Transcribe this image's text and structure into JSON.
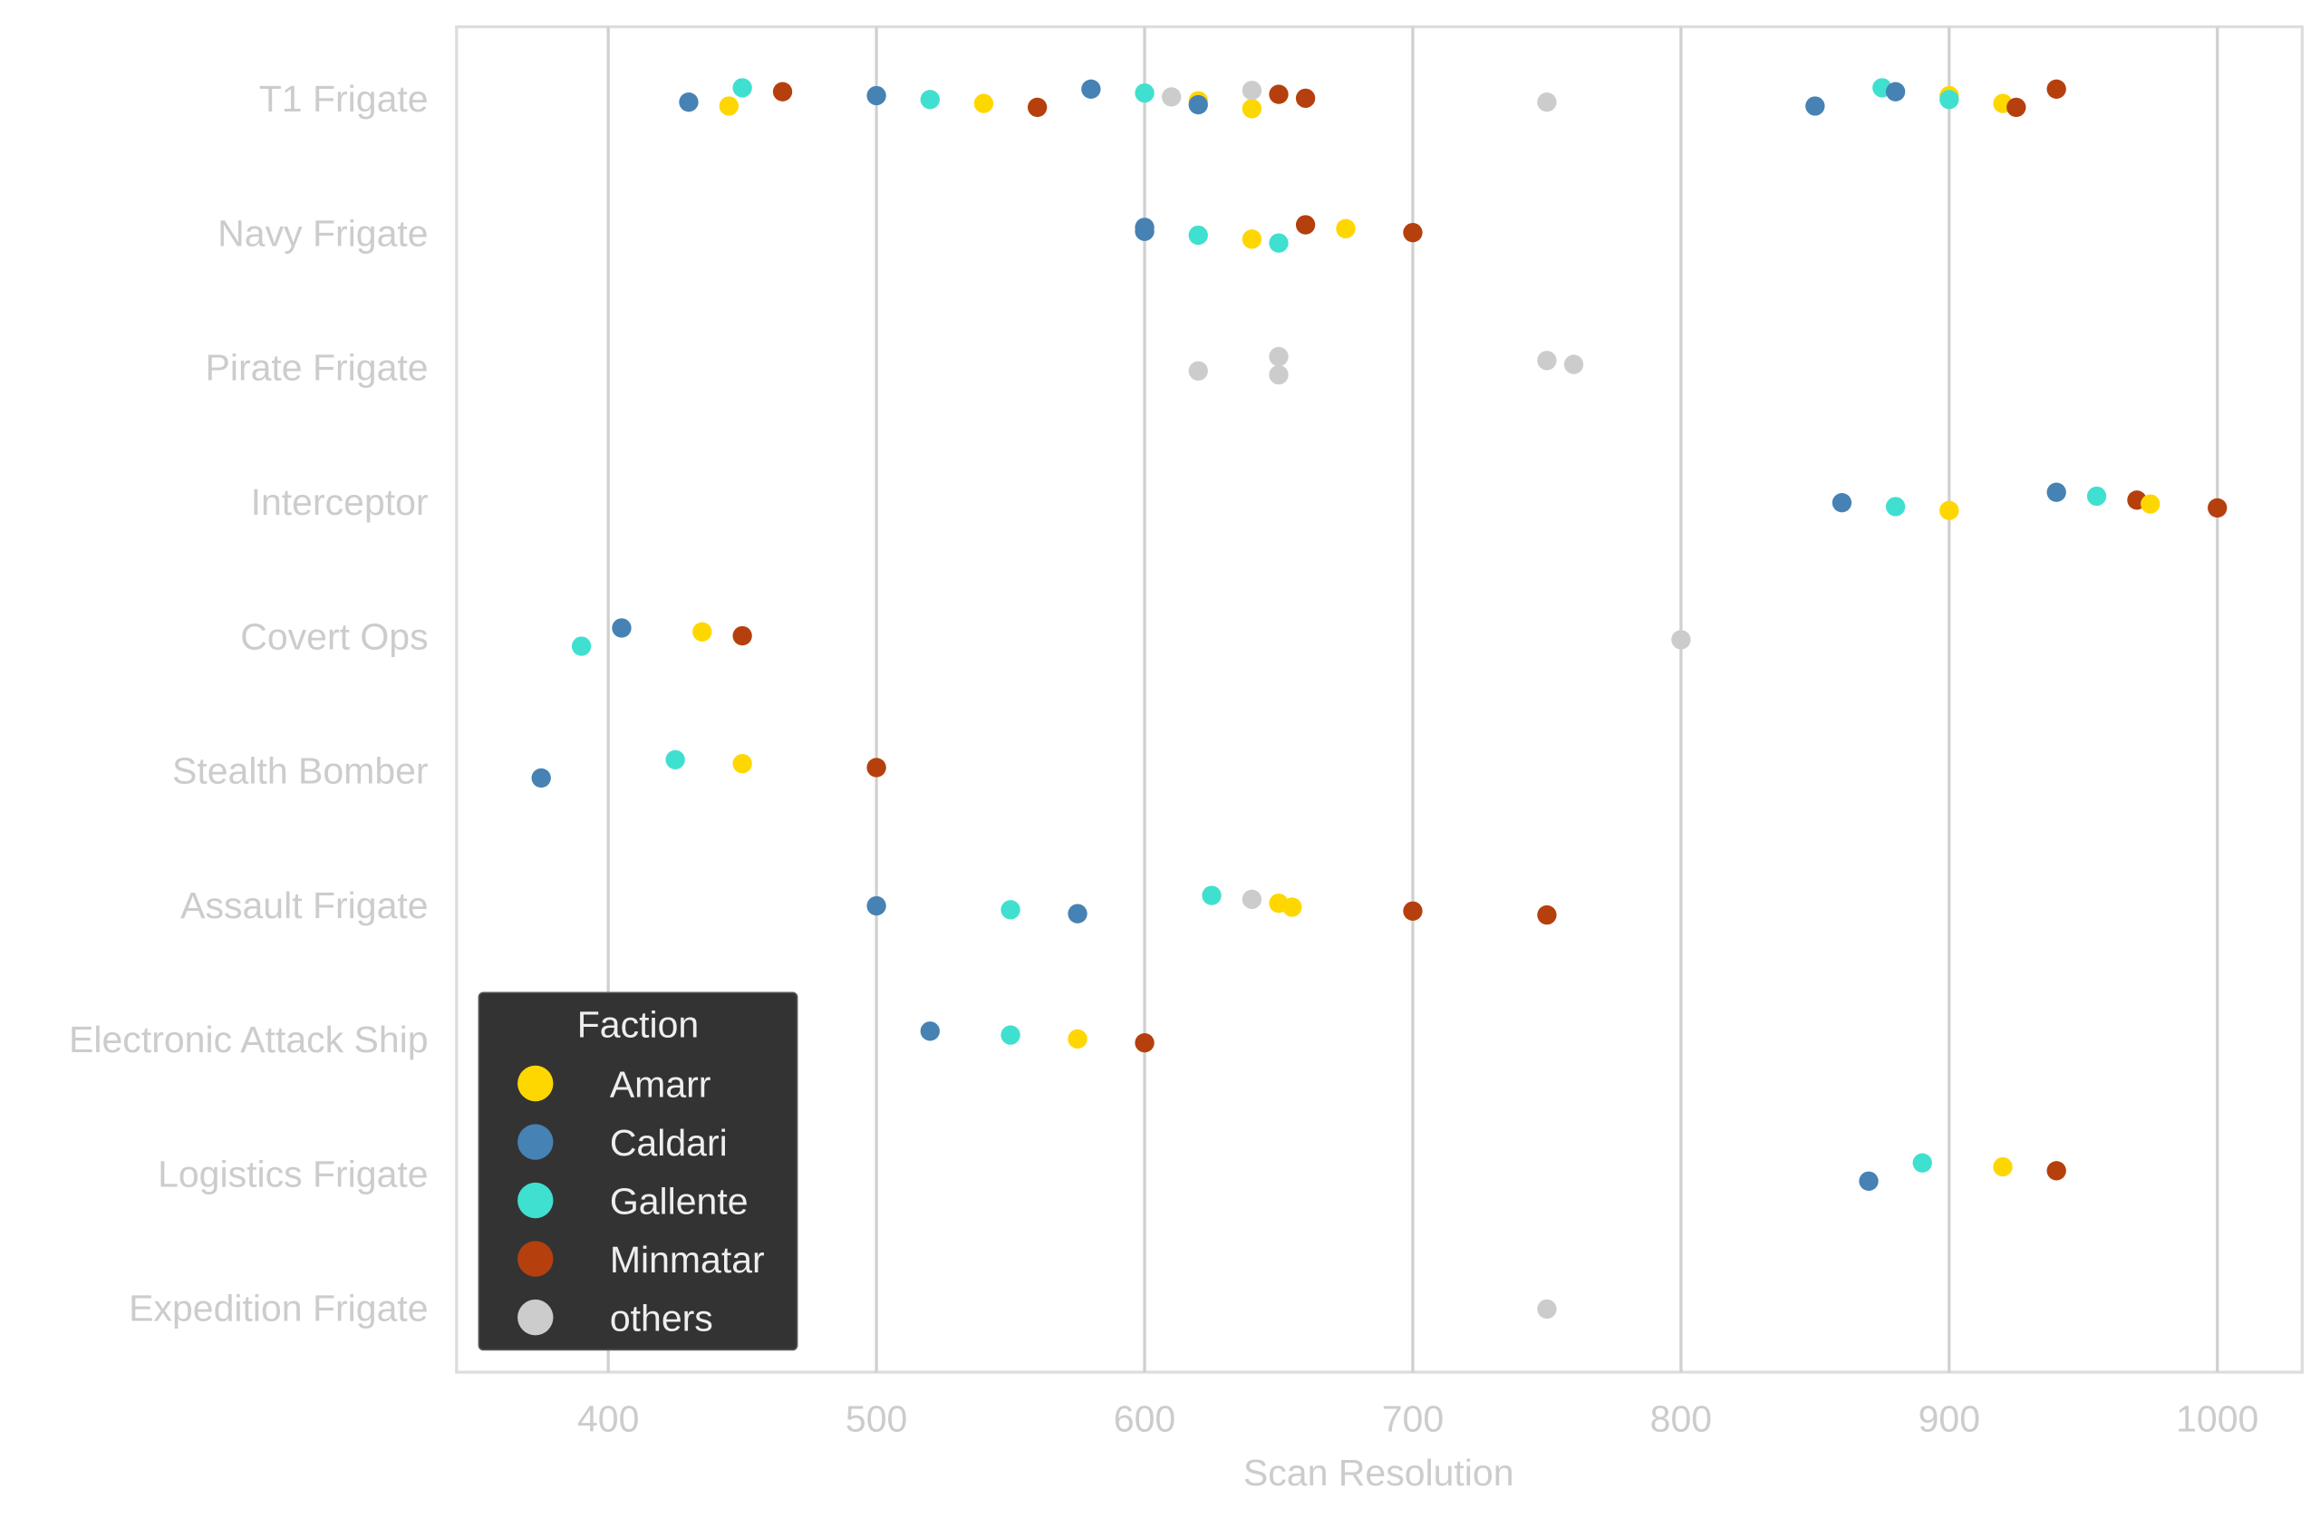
{
  "chart_data": {
    "type": "scatter",
    "subtype": "strip",
    "xlabel": "Scan Resolution",
    "ylabel": "",
    "xlim": [
      343,
      1032
    ],
    "xticks": [
      400,
      500,
      600,
      700,
      800,
      900,
      1000
    ],
    "xtick_labels": [
      "400",
      "500",
      "600",
      "700",
      "800",
      "900",
      "1000"
    ],
    "grid": "vertical",
    "categories": [
      "T1 Frigate",
      "Navy Frigate",
      "Pirate Frigate",
      "Interceptor",
      "Covert Ops",
      "Stealth Bomber",
      "Assault Frigate",
      "Electronic Attack Ship",
      "Logistics Frigate",
      "Expedition Frigate"
    ],
    "legend": {
      "title": "Faction",
      "placement": "lower-left",
      "entries": [
        {
          "name": "Amarr",
          "color": "#FFD700"
        },
        {
          "name": "Caldari",
          "color": "#4682B4"
        },
        {
          "name": "Gallente",
          "color": "#40E0D0"
        },
        {
          "name": "Minmatar",
          "color": "#B5400E"
        },
        {
          "name": "others",
          "color": "#CCCCCC"
        }
      ]
    },
    "points": [
      [
        "T1 Frigate",
        "Caldari",
        430
      ],
      [
        "T1 Frigate",
        "Amarr",
        445
      ],
      [
        "T1 Frigate",
        "Gallente",
        450
      ],
      [
        "T1 Frigate",
        "Minmatar",
        465
      ],
      [
        "T1 Frigate",
        "Caldari",
        500
      ],
      [
        "T1 Frigate",
        "Gallente",
        520
      ],
      [
        "T1 Frigate",
        "Amarr",
        540
      ],
      [
        "T1 Frigate",
        "Minmatar",
        560
      ],
      [
        "T1 Frigate",
        "Caldari",
        580
      ],
      [
        "T1 Frigate",
        "Gallente",
        600
      ],
      [
        "T1 Frigate",
        "others",
        610
      ],
      [
        "T1 Frigate",
        "Amarr",
        620
      ],
      [
        "T1 Frigate",
        "Caldari",
        620
      ],
      [
        "T1 Frigate",
        "Amarr",
        640
      ],
      [
        "T1 Frigate",
        "others",
        640
      ],
      [
        "T1 Frigate",
        "Minmatar",
        650
      ],
      [
        "T1 Frigate",
        "Minmatar",
        660
      ],
      [
        "T1 Frigate",
        "others",
        750
      ],
      [
        "T1 Frigate",
        "Caldari",
        850
      ],
      [
        "T1 Frigate",
        "Gallente",
        875
      ],
      [
        "T1 Frigate",
        "Caldari",
        880
      ],
      [
        "T1 Frigate",
        "Amarr",
        900
      ],
      [
        "T1 Frigate",
        "Gallente",
        900
      ],
      [
        "T1 Frigate",
        "Amarr",
        920
      ],
      [
        "T1 Frigate",
        "Minmatar",
        925
      ],
      [
        "T1 Frigate",
        "Minmatar",
        940
      ],
      [
        "Navy Frigate",
        "Caldari",
        600
      ],
      [
        "Navy Frigate",
        "Caldari",
        600
      ],
      [
        "Navy Frigate",
        "Gallente",
        620
      ],
      [
        "Navy Frigate",
        "Amarr",
        640
      ],
      [
        "Navy Frigate",
        "Gallente",
        650
      ],
      [
        "Navy Frigate",
        "Minmatar",
        660
      ],
      [
        "Navy Frigate",
        "Amarr",
        675
      ],
      [
        "Navy Frigate",
        "Minmatar",
        700
      ],
      [
        "Pirate Frigate",
        "others",
        620
      ],
      [
        "Pirate Frigate",
        "others",
        650
      ],
      [
        "Pirate Frigate",
        "others",
        650
      ],
      [
        "Pirate Frigate",
        "others",
        750
      ],
      [
        "Pirate Frigate",
        "others",
        760
      ],
      [
        "Interceptor",
        "Caldari",
        860
      ],
      [
        "Interceptor",
        "Gallente",
        880
      ],
      [
        "Interceptor",
        "Amarr",
        900
      ],
      [
        "Interceptor",
        "Caldari",
        940
      ],
      [
        "Interceptor",
        "Gallente",
        955
      ],
      [
        "Interceptor",
        "Minmatar",
        970
      ],
      [
        "Interceptor",
        "Amarr",
        975
      ],
      [
        "Interceptor",
        "Minmatar",
        1000
      ],
      [
        "Covert Ops",
        "Gallente",
        390
      ],
      [
        "Covert Ops",
        "Caldari",
        405
      ],
      [
        "Covert Ops",
        "Amarr",
        435
      ],
      [
        "Covert Ops",
        "Minmatar",
        450
      ],
      [
        "Covert Ops",
        "others",
        800
      ],
      [
        "Stealth Bomber",
        "Caldari",
        375
      ],
      [
        "Stealth Bomber",
        "Gallente",
        425
      ],
      [
        "Stealth Bomber",
        "Amarr",
        450
      ],
      [
        "Stealth Bomber",
        "Minmatar",
        500
      ],
      [
        "Assault Frigate",
        "Caldari",
        500
      ],
      [
        "Assault Frigate",
        "Gallente",
        550
      ],
      [
        "Assault Frigate",
        "Caldari",
        575
      ],
      [
        "Assault Frigate",
        "Gallente",
        625
      ],
      [
        "Assault Frigate",
        "others",
        640
      ],
      [
        "Assault Frigate",
        "Amarr",
        650
      ],
      [
        "Assault Frigate",
        "Amarr",
        655
      ],
      [
        "Assault Frigate",
        "Minmatar",
        700
      ],
      [
        "Assault Frigate",
        "Minmatar",
        750
      ],
      [
        "Electronic Attack Ship",
        "Caldari",
        520
      ],
      [
        "Electronic Attack Ship",
        "Gallente",
        550
      ],
      [
        "Electronic Attack Ship",
        "Amarr",
        575
      ],
      [
        "Electronic Attack Ship",
        "Minmatar",
        600
      ],
      [
        "Logistics Frigate",
        "Caldari",
        870
      ],
      [
        "Logistics Frigate",
        "Gallente",
        890
      ],
      [
        "Logistics Frigate",
        "Amarr",
        920
      ],
      [
        "Logistics Frigate",
        "Minmatar",
        940
      ],
      [
        "Expedition Frigate",
        "others",
        750
      ]
    ]
  }
}
